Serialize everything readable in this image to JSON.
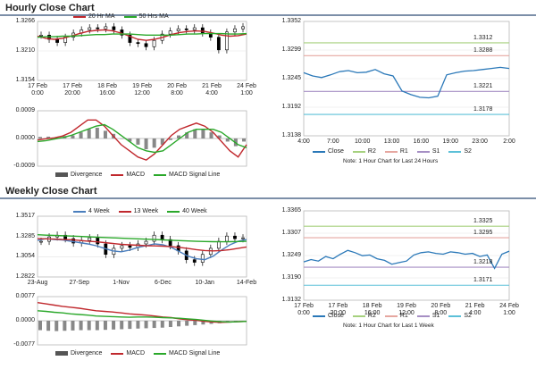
{
  "titles": {
    "hourly": "Hourly Close Chart",
    "weekly": "Weekly Close Chart"
  },
  "colors": {
    "ma_red": "#c0282d",
    "ma_green": "#2aa82a",
    "ma_blue": "#4a7ebd",
    "close_blue": "#2a78b8",
    "r2": "#a6d17e",
    "r1": "#e6a7a0",
    "s1": "#a68fc4",
    "s2": "#5cc0d8",
    "macd_red": "#c0282d",
    "signal_green": "#2aa82a",
    "hist": "#888888",
    "candle": "#000000"
  },
  "chart_data": [
    {
      "id": "hourly_price",
      "type": "candlestick",
      "ylim": [
        1.3154,
        1.3266
      ],
      "y_ticks": [
        "1.3266",
        "1.3210",
        "1.3154"
      ],
      "x_ticks": [
        "17 Feb\n0:00",
        "17 Feb\n20:00",
        "18 Feb\n16:00",
        "19 Feb\n12:00",
        "20 Feb\n8:00",
        "21 Feb\n4:00",
        "24 Feb\n1:00"
      ],
      "series": [
        {
          "name": "20 Hr MA",
          "color": "#c0282d",
          "values": [
            1.3238,
            1.3234,
            1.3232,
            1.3234,
            1.3238,
            1.3243,
            1.3247,
            1.3249,
            1.325,
            1.3248,
            1.3244,
            1.3238,
            1.3232,
            1.323,
            1.3232,
            1.3236,
            1.3241,
            1.3245,
            1.3247,
            1.3248,
            1.3247,
            1.3244,
            1.324,
            1.3238,
            1.3239,
            1.3242
          ]
        },
        {
          "name": "50 Hrs MA",
          "color": "#2aa82a",
          "values": [
            1.3236,
            1.3237,
            1.3237,
            1.3238,
            1.3238,
            1.3239,
            1.324,
            1.3241,
            1.3241,
            1.3242,
            1.3242,
            1.3242,
            1.3241,
            1.324,
            1.324,
            1.324,
            1.324,
            1.3241,
            1.3242,
            1.3242,
            1.3243,
            1.3243,
            1.3243,
            1.3242,
            1.3242,
            1.3243
          ]
        }
      ],
      "candles": [
        1.324,
        1.3232,
        1.3226,
        1.3236,
        1.3244,
        1.325,
        1.3254,
        1.3252,
        1.3256,
        1.325,
        1.324,
        1.3226,
        1.3224,
        1.3218,
        1.323,
        1.3242,
        1.3248,
        1.3252,
        1.325,
        1.3254,
        1.3244,
        1.3236,
        1.3212,
        1.3246,
        1.3252,
        1.3256
      ]
    },
    {
      "id": "hourly_macd",
      "type": "macd",
      "ylim": [
        -0.0009,
        0.0009
      ],
      "y_ticks": [
        "0.0009",
        "0.0000",
        "-0.0009"
      ],
      "series": [
        {
          "name": "Divergence",
          "values": [
            5e-05,
            6e-05,
            4e-05,
            8e-05,
            0.0001,
            0.0002,
            0.0003,
            0.00035,
            0.00025,
            0.00015,
            0.0,
            -0.0001,
            -0.0002,
            -0.00035,
            -0.0003,
            -0.0002,
            -5e-05,
            0.0001,
            0.0002,
            0.0003,
            0.0003,
            0.0002,
            0.0001,
            -0.0001,
            -0.00025,
            -0.0001
          ]
        },
        {
          "name": "MACD",
          "color": "#c0282d",
          "values": [
            -5e-05,
            -1e-05,
            2e-05,
            8e-05,
            0.0002,
            0.0004,
            0.0006,
            0.0006,
            0.0004,
            0.0001,
            -0.0002,
            -0.0004,
            -0.0006,
            -0.0007,
            -0.0005,
            -0.0002,
            0.0001,
            0.0003,
            0.0004,
            0.0005,
            0.0004,
            0.0002,
            -0.0001,
            -0.0004,
            -0.0006,
            -0.0002
          ]
        },
        {
          "name": "MACD Signal Line",
          "color": "#2aa82a",
          "values": [
            -0.0001,
            -7e-05,
            -2e-05,
            3e-05,
            0.0001,
            0.0002,
            0.0003,
            0.0004,
            0.00045,
            0.0003,
            0.0001,
            -0.0001,
            -0.0003,
            -0.0004,
            -0.00045,
            -0.0004,
            -0.0002,
            0.0,
            0.0002,
            0.0003,
            0.0003,
            0.0003,
            0.0002,
            0.0,
            -0.0002,
            -0.0003
          ]
        }
      ],
      "legend": [
        "Divergence",
        "MACD",
        "MACD Signal Line"
      ]
    },
    {
      "id": "hourly_close",
      "type": "line",
      "ylim": [
        1.3138,
        1.3352
      ],
      "y_ticks": [
        "1.3352",
        "1.3299",
        "1.3245",
        "1.3192",
        "1.3138"
      ],
      "x_ticks": [
        "4:00",
        "7:00",
        "10:00",
        "13:00",
        "16:00",
        "19:00",
        "23:00",
        "2:00"
      ],
      "levels": [
        {
          "name": "R2",
          "value": 1.3312,
          "label": "1.3312",
          "color": "#a6d17e"
        },
        {
          "name": "R1",
          "value": 1.3288,
          "label": "1.3288",
          "color": "#e6a7a0"
        },
        {
          "name": "S1",
          "value": 1.3221,
          "label": "1.3221",
          "color": "#a68fc4"
        },
        {
          "name": "S2",
          "value": 1.3178,
          "label": "1.3178",
          "color": "#5cc0d8"
        }
      ],
      "series": [
        {
          "name": "Close",
          "color": "#2a78b8",
          "values": [
            1.3256,
            1.325,
            1.3247,
            1.3252,
            1.3258,
            1.326,
            1.3256,
            1.3257,
            1.3262,
            1.3254,
            1.325,
            1.3222,
            1.3215,
            1.321,
            1.3209,
            1.3212,
            1.3252,
            1.3256,
            1.3259,
            1.326,
            1.3262,
            1.3264,
            1.3266,
            1.3264
          ]
        }
      ],
      "legend": [
        "Close",
        "R2",
        "R1",
        "S1",
        "S2"
      ],
      "note": "Note: 1 Hour Chart for Last 24 Hours"
    },
    {
      "id": "weekly_price",
      "type": "candlestick",
      "ylim": [
        1.2822,
        1.3517
      ],
      "y_ticks": [
        "1.3517",
        "1.3285",
        "1.3054",
        "1.2822"
      ],
      "x_ticks": [
        "23-Aug",
        "27-Sep",
        "1-Nov",
        "6-Dec",
        "10-Jan",
        "14-Feb"
      ],
      "series": [
        {
          "name": "4 Week",
          "color": "#4a7ebd",
          "values": [
            1.324,
            1.326,
            1.325,
            1.3245,
            1.323,
            1.3215,
            1.32,
            1.318,
            1.315,
            1.312,
            1.311,
            1.313,
            1.316,
            1.318,
            1.32,
            1.319,
            1.316,
            1.311,
            1.306,
            1.303,
            1.302,
            1.306,
            1.313,
            1.319,
            1.323,
            1.325
          ]
        },
        {
          "name": "13 Week",
          "color": "#c0282d",
          "values": [
            1.326,
            1.3258,
            1.3255,
            1.325,
            1.3248,
            1.324,
            1.3232,
            1.3225,
            1.3215,
            1.3205,
            1.3195,
            1.319,
            1.3185,
            1.318,
            1.3178,
            1.3175,
            1.3168,
            1.316,
            1.3148,
            1.3135,
            1.3125,
            1.312,
            1.3125,
            1.3135,
            1.315,
            1.3165
          ]
        },
        {
          "name": "40 Week",
          "color": "#2aa82a",
          "values": [
            1.3305,
            1.33,
            1.3297,
            1.3294,
            1.329,
            1.3286,
            1.3282,
            1.3278,
            1.3274,
            1.327,
            1.3266,
            1.3262,
            1.3258,
            1.3254,
            1.325,
            1.3246,
            1.3242,
            1.3238,
            1.3234,
            1.323,
            1.3228,
            1.3226,
            1.3225,
            1.3226,
            1.3228,
            1.323
          ]
        }
      ],
      "candles": [
        1.323,
        1.328,
        1.33,
        1.326,
        1.321,
        1.324,
        1.327,
        1.32,
        1.308,
        1.315,
        1.318,
        1.316,
        1.32,
        1.323,
        1.33,
        1.325,
        1.318,
        1.312,
        1.302,
        1.299,
        1.308,
        1.315,
        1.323,
        1.329,
        1.326,
        1.327
      ]
    },
    {
      "id": "weekly_macd",
      "type": "macd",
      "ylim": [
        -0.0077,
        0.0077
      ],
      "y_ticks": [
        "0.0077",
        "0.0000",
        "-0.0077"
      ],
      "series": [
        {
          "name": "Divergence",
          "values": [
            -0.003,
            -0.0032,
            -0.0033,
            -0.0032,
            -0.0031,
            -0.003,
            -0.003,
            -0.003,
            -0.0029,
            -0.0028,
            -0.0027,
            -0.0026,
            -0.0025,
            -0.0024,
            -0.0023,
            -0.0022,
            -0.002,
            -0.0018,
            -0.0016,
            -0.0014,
            -0.0012,
            -0.001,
            -0.0008,
            -0.0006,
            -0.0004,
            -0.0003
          ]
        },
        {
          "name": "MACD",
          "color": "#c0282d",
          "values": [
            0.0058,
            0.0054,
            0.005,
            0.0046,
            0.0043,
            0.004,
            0.0036,
            0.0032,
            0.003,
            0.0028,
            0.0025,
            0.0022,
            0.002,
            0.0018,
            0.0015,
            0.0012,
            0.001,
            0.0006,
            0.0003,
            0.0001,
            -0.0002,
            -0.0004,
            -0.0005,
            -0.0004,
            -0.0003,
            -0.0002
          ]
        },
        {
          "name": "MACD Signal Line",
          "color": "#2aa82a",
          "values": [
            0.0032,
            0.003,
            0.0027,
            0.0025,
            0.0022,
            0.002,
            0.0018,
            0.0015,
            0.0014,
            0.0013,
            0.0012,
            0.0011,
            0.0012,
            0.0012,
            0.0011,
            0.001,
            0.0009,
            0.0008,
            0.0006,
            0.0004,
            0.0001,
            -0.0001,
            -0.0003,
            -0.0004,
            -0.0003,
            -0.0002
          ]
        }
      ],
      "legend": [
        "Divergence",
        "MACD",
        "MACD Signal Line"
      ]
    },
    {
      "id": "weekly_close",
      "type": "line",
      "ylim": [
        1.3132,
        1.3365
      ],
      "y_ticks": [
        "1.3365",
        "1.3307",
        "1.3249",
        "1.3190",
        "1.3132"
      ],
      "x_ticks": [
        "17 Feb\n0:00",
        "17 Feb\n20:00",
        "18 Feb\n16:00",
        "19 Feb\n12:00",
        "20 Feb\n8:00",
        "21 Feb\n4:00",
        "24 Feb\n1:00"
      ],
      "levels": [
        {
          "name": "R2",
          "value": 1.3325,
          "label": "1.3325",
          "color": "#a6d17e"
        },
        {
          "name": "R1",
          "value": 1.3295,
          "label": "1.3295",
          "color": "#e6a7a0"
        },
        {
          "name": "S1",
          "value": 1.3218,
          "label": "1.3218",
          "color": "#a68fc4"
        },
        {
          "name": "S2",
          "value": 1.3171,
          "label": "1.3171",
          "color": "#5cc0d8"
        }
      ],
      "series": [
        {
          "name": "Close",
          "color": "#2a78b8",
          "values": [
            1.3232,
            1.3238,
            1.3234,
            1.3246,
            1.324,
            1.3252,
            1.3262,
            1.3256,
            1.3248,
            1.325,
            1.324,
            1.3236,
            1.3226,
            1.323,
            1.3234,
            1.325,
            1.3256,
            1.3258,
            1.3254,
            1.3252,
            1.3258,
            1.3256,
            1.3252,
            1.3254,
            1.3246,
            1.325,
            1.3215,
            1.3252,
            1.326
          ]
        }
      ],
      "legend": [
        "Close",
        "R2",
        "R1",
        "S1",
        "S2"
      ],
      "note": "Note: 1 Hour Chart for Last 1 Week"
    }
  ]
}
